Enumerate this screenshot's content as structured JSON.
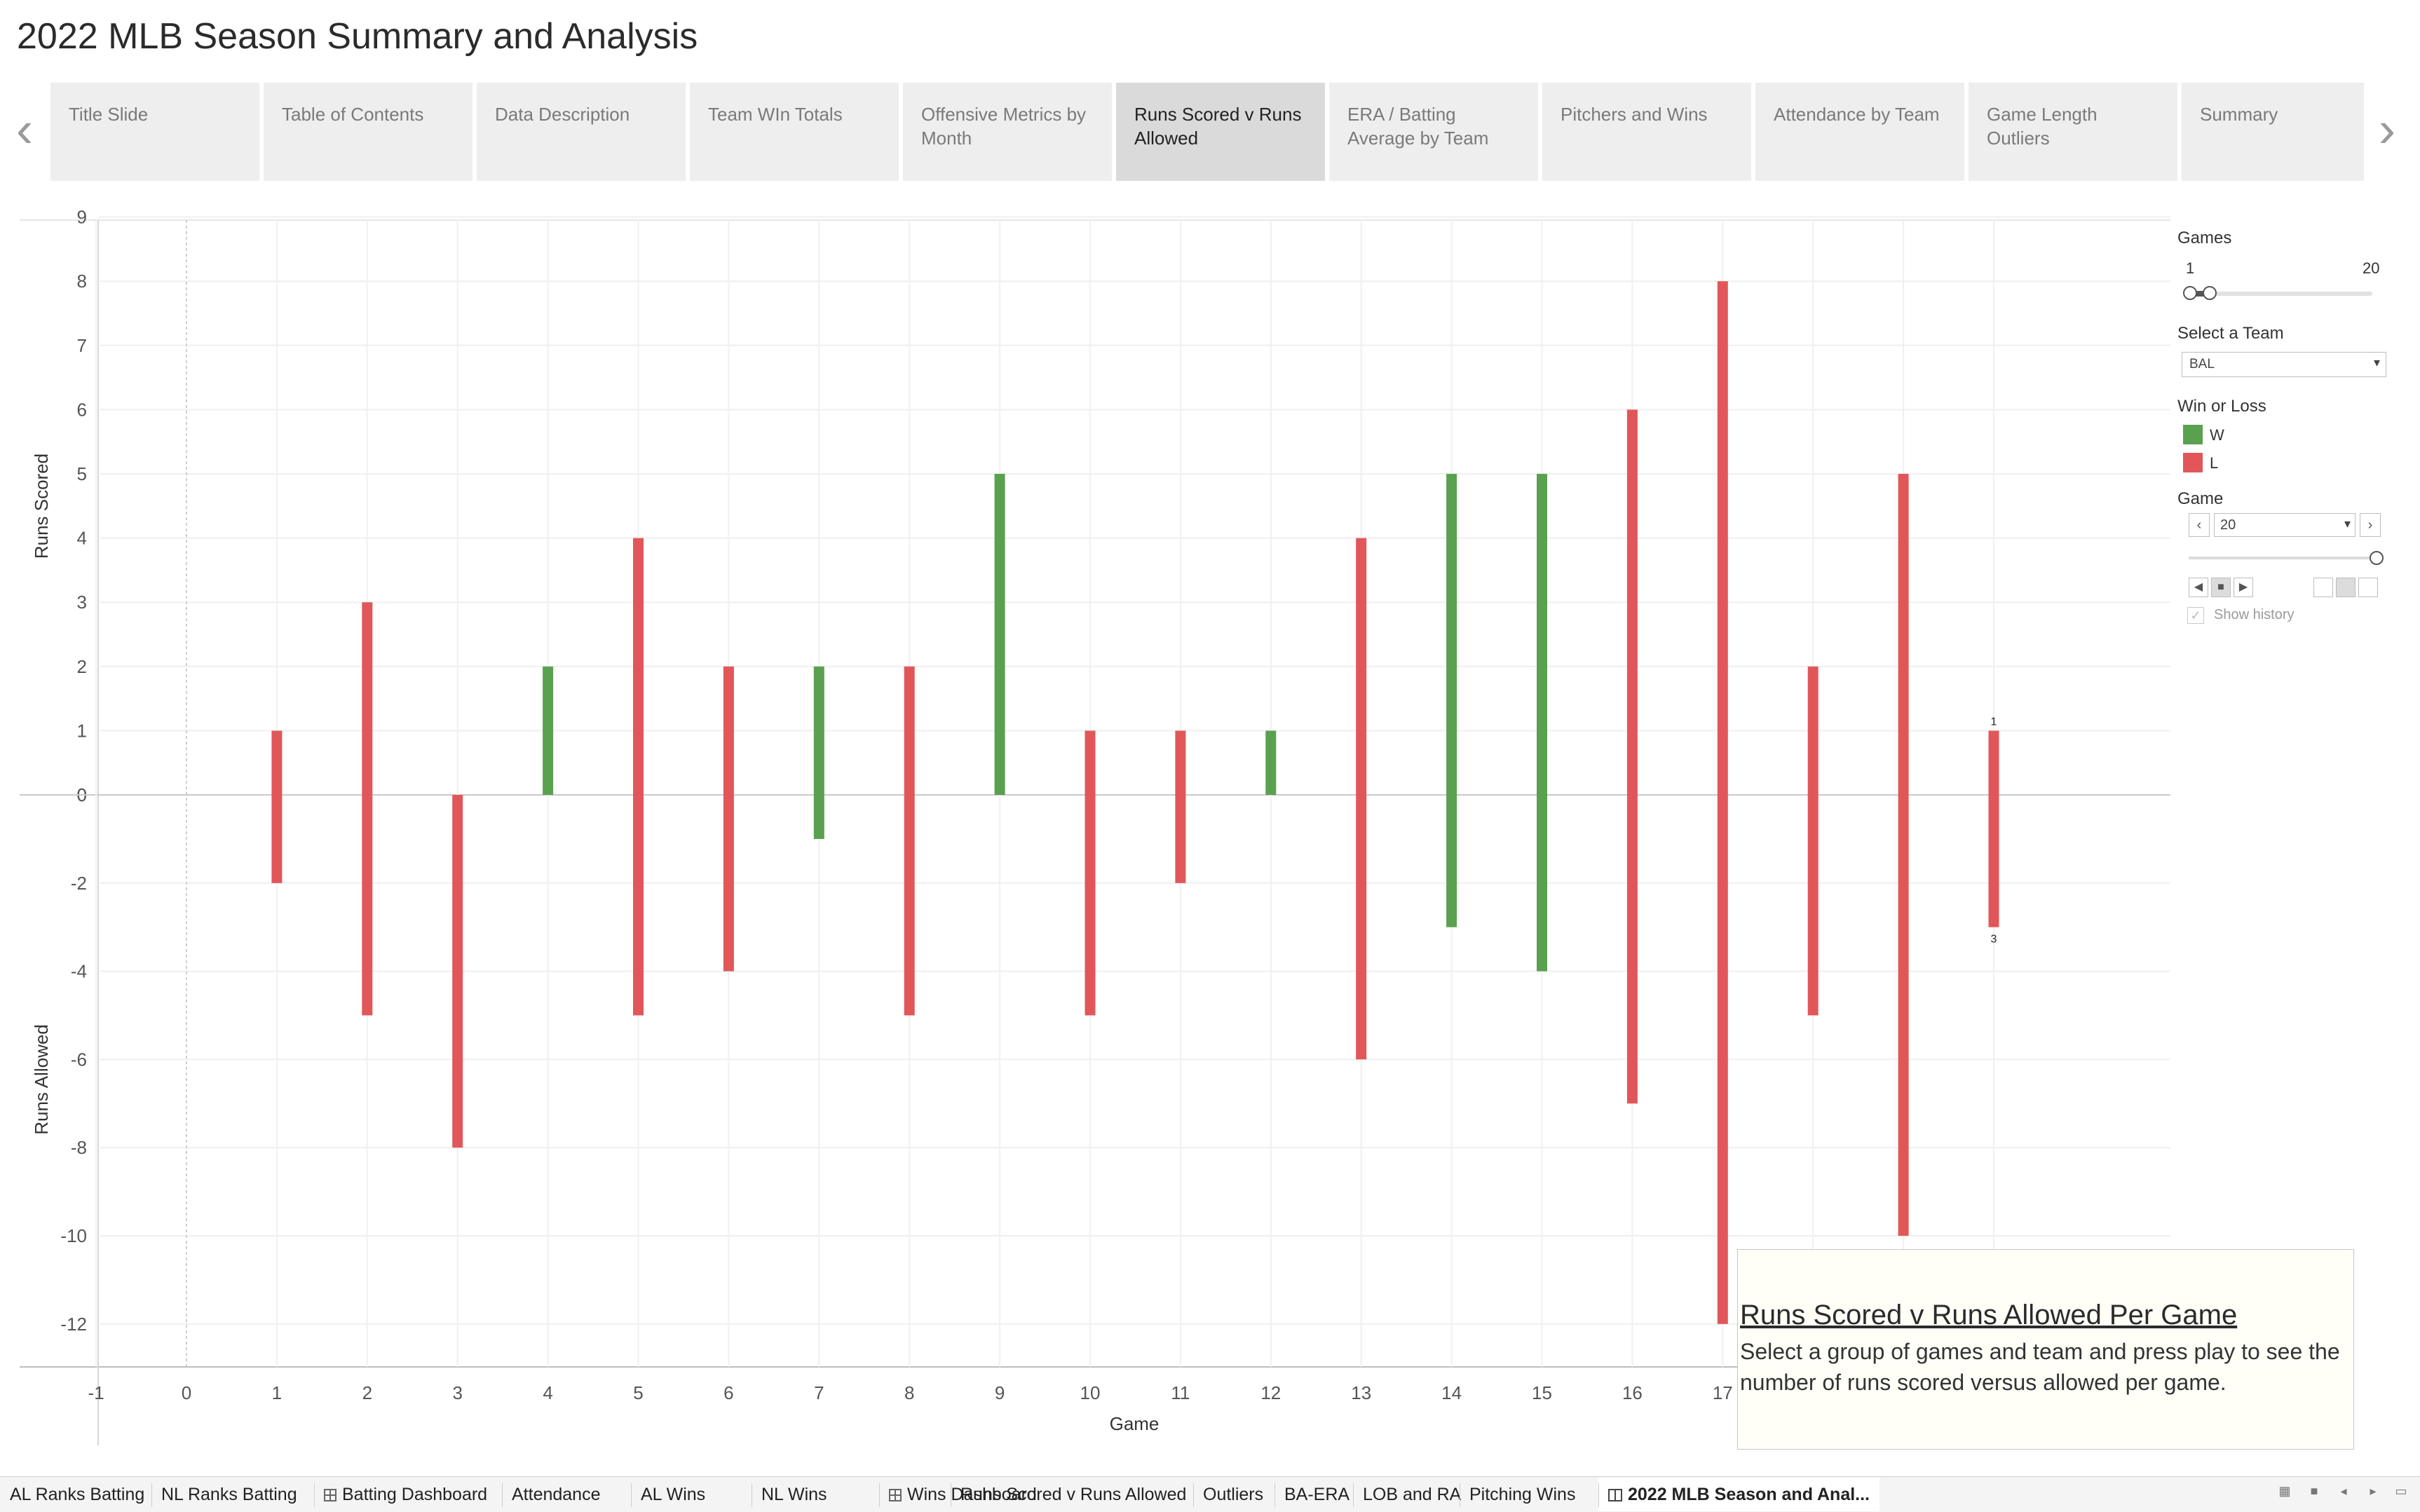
{
  "story": {
    "title": "2022 MLB Season Summary and Analysis"
  },
  "story_tabs": [
    {
      "label": "Title Slide"
    },
    {
      "label": "Table of Contents"
    },
    {
      "label": "Data Description"
    },
    {
      "label": "Team WIn Totals"
    },
    {
      "label": "Offensive Metrics by Month"
    },
    {
      "label": "Runs Scored v Runs Allowed",
      "active": true
    },
    {
      "label": "ERA / Batting Average by Team"
    },
    {
      "label": "Pitchers and Wins"
    },
    {
      "label": "Attendance by Team"
    },
    {
      "label": "Game Length Outliers"
    },
    {
      "label": "Summary"
    }
  ],
  "filters": {
    "games": {
      "label": "Games",
      "min": "1",
      "max": "20",
      "range_low": 1,
      "range_high": 2
    },
    "team": {
      "label": "Select a Team",
      "value": "BAL"
    },
    "win_loss": {
      "label": "Win or Loss",
      "items": [
        {
          "label": "W",
          "color": "#59a14f"
        },
        {
          "label": "L",
          "color": "#e15759"
        }
      ]
    },
    "game": {
      "label": "Game",
      "value": "20",
      "show_history": "Show history"
    }
  },
  "chart_data": {
    "type": "bar",
    "xlabel": "Game",
    "ylabel_top": "Runs Scored",
    "ylabel_bottom": "Runs Allowed",
    "x_ticks": [
      "-1",
      "0",
      "1",
      "2",
      "3",
      "4",
      "5",
      "6",
      "7",
      "8",
      "9",
      "10",
      "11",
      "12",
      "13",
      "14",
      "15",
      "16",
      "17"
    ],
    "y_ticks_top": [
      "9",
      "8",
      "7",
      "6",
      "5",
      "4",
      "3",
      "2",
      "1",
      "0"
    ],
    "y_ticks_bottom": [
      "0",
      "-2",
      "-4",
      "-6",
      "-8",
      "-10",
      "-12"
    ],
    "xlim": [
      -1,
      20.2
    ],
    "ylim_top": [
      0,
      9
    ],
    "ylim_bottom": [
      -13,
      0
    ],
    "grid": true,
    "series": [
      {
        "name": "W",
        "color": "#59a14f"
      },
      {
        "name": "L",
        "color": "#e15759"
      }
    ],
    "games": [
      {
        "game": 1,
        "scored": 1,
        "allowed": 2,
        "result": "L"
      },
      {
        "game": 2,
        "scored": 3,
        "allowed": 5,
        "result": "L"
      },
      {
        "game": 3,
        "scored": 0,
        "allowed": 8,
        "result": "L"
      },
      {
        "game": 4,
        "scored": 2,
        "allowed": 0,
        "result": "W"
      },
      {
        "game": 5,
        "scored": 4,
        "allowed": 5,
        "result": "L"
      },
      {
        "game": 6,
        "scored": 2,
        "allowed": 4,
        "result": "L"
      },
      {
        "game": 7,
        "scored": 2,
        "allowed": 1,
        "result": "W"
      },
      {
        "game": 8,
        "scored": 2,
        "allowed": 5,
        "result": "L"
      },
      {
        "game": 9,
        "scored": 5,
        "allowed": 0,
        "result": "W"
      },
      {
        "game": 10,
        "scored": 1,
        "allowed": 5,
        "result": "L"
      },
      {
        "game": 11,
        "scored": 1,
        "allowed": 2,
        "result": "L"
      },
      {
        "game": 12,
        "scored": 1,
        "allowed": 0,
        "result": "W"
      },
      {
        "game": 13,
        "scored": 4,
        "allowed": 6,
        "result": "L"
      },
      {
        "game": 14,
        "scored": 5,
        "allowed": 3,
        "result": "W"
      },
      {
        "game": 15,
        "scored": 5,
        "allowed": 4,
        "result": "W"
      },
      {
        "game": 16,
        "scored": 6,
        "allowed": 7,
        "result": "L"
      },
      {
        "game": 17,
        "scored": 8,
        "allowed": 12,
        "result": "L"
      },
      {
        "game": 18,
        "scored": 2,
        "allowed": 5,
        "result": "L"
      },
      {
        "game": 19,
        "scored": 5,
        "allowed": 10,
        "result": "L"
      },
      {
        "game": 20,
        "scored": 1,
        "allowed": 3,
        "result": "L"
      }
    ],
    "labels": {
      "scored": "1",
      "allowed": "3"
    }
  },
  "caption": {
    "title": "Runs Scored v Runs Allowed Per Game",
    "body": "Select a group of games and team and press play to see the number of runs scored versus allowed per game."
  },
  "sheet_tabs": [
    {
      "label": "AL Ranks Batting",
      "icon": ""
    },
    {
      "label": "NL Ranks Batting",
      "icon": ""
    },
    {
      "label": "Batting Dashboard",
      "icon": "dashboard-icon"
    },
    {
      "label": "Attendance",
      "icon": ""
    },
    {
      "label": "AL Wins",
      "icon": ""
    },
    {
      "label": "NL Wins",
      "icon": ""
    },
    {
      "label": "Wins Dashboard",
      "icon": "dashboard-icon"
    },
    {
      "label": "Runs Scored v Runs Allowed",
      "icon": ""
    },
    {
      "label": "Outliers",
      "icon": ""
    },
    {
      "label": "BA-ERA",
      "icon": ""
    },
    {
      "label": "LOB and RA",
      "icon": ""
    },
    {
      "label": "Pitching Wins",
      "icon": ""
    },
    {
      "label": "2022 MLB Season and Anal...",
      "icon": "story-icon",
      "active": true
    }
  ]
}
